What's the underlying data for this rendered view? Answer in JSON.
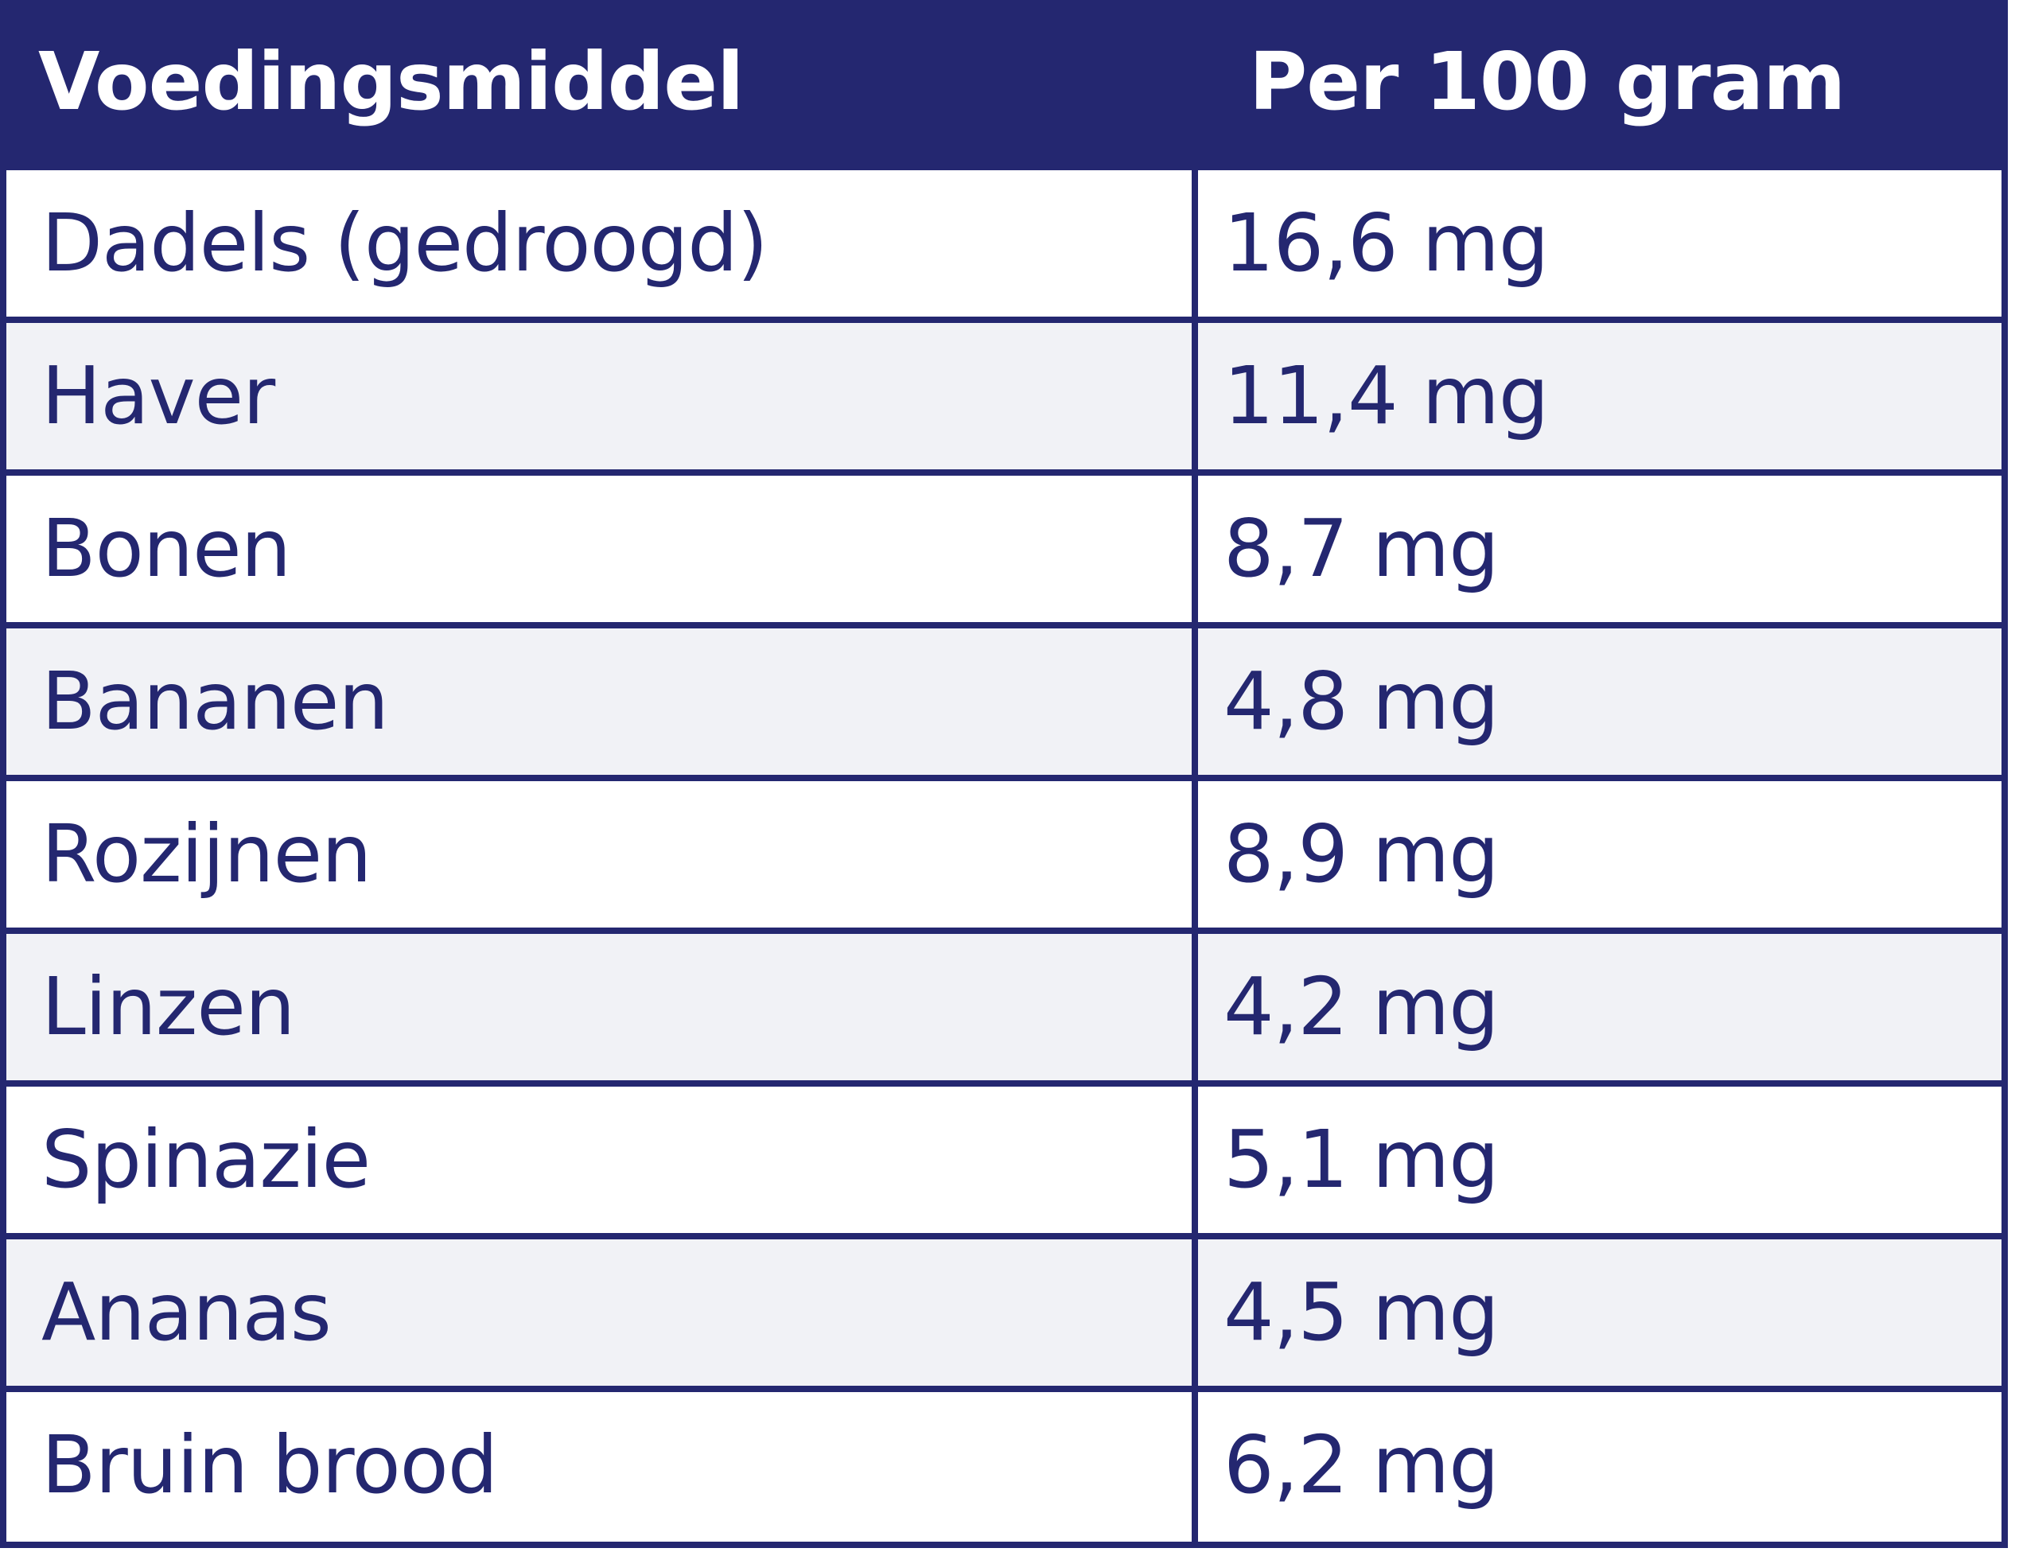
{
  "table": {
    "headers": [
      "Voedingsmiddel",
      "Per 100 gram"
    ],
    "rows": [
      {
        "food": "Dadels (gedroogd)",
        "amount": "16,6 mg"
      },
      {
        "food": "Haver",
        "amount": "11,4 mg"
      },
      {
        "food": "Bonen",
        "amount": "8,7 mg"
      },
      {
        "food": "Bananen",
        "amount": "4,8 mg"
      },
      {
        "food": "Rozijnen",
        "amount": "8,9 mg"
      },
      {
        "food": "Linzen",
        "amount": "4,2 mg"
      },
      {
        "food": "Spinazie",
        "amount": "5,1 mg"
      },
      {
        "food": "Ananas",
        "amount": "4,5 mg"
      },
      {
        "food": "Bruin brood",
        "amount": "6,2 mg"
      }
    ]
  },
  "colors": {
    "header_bg": "#242770",
    "header_text": "#ffffff",
    "body_text": "#242770",
    "alt_row_bg": "#f1f2f6",
    "border": "#242770"
  }
}
